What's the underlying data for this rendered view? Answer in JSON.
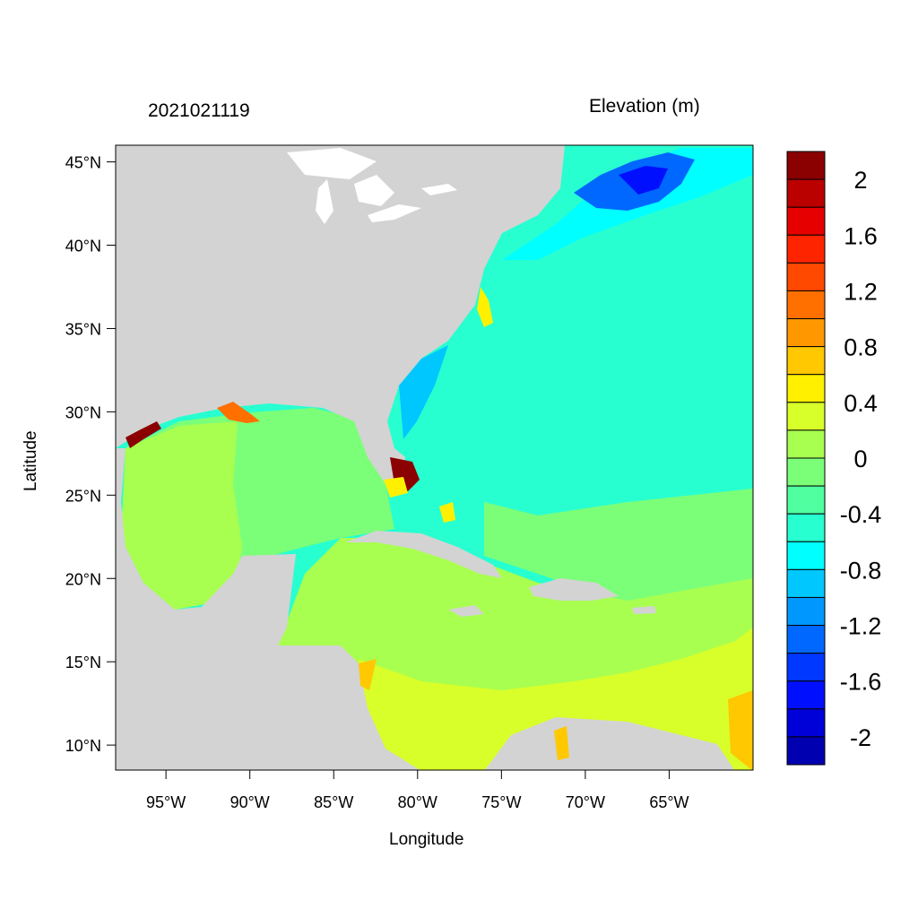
{
  "map": {
    "date_label": "2021021119",
    "units_label": "Elevation (m)",
    "xlabel": "Longitude",
    "ylabel": "Latitude",
    "lon_range": [
      -98,
      -60
    ],
    "lat_range": [
      8.5,
      46
    ],
    "lon_ticks": [
      "95°W",
      "90°W",
      "85°W",
      "80°W",
      "75°W",
      "70°W",
      "65°W"
    ],
    "lat_ticks": [
      "45°N",
      "40°N",
      "35°N",
      "30°N",
      "25°N",
      "20°N",
      "15°N",
      "10°N"
    ],
    "land_color": "#d3d3d3"
  },
  "colorbar": {
    "labels": [
      "2",
      "1.6",
      "1.2",
      "0.8",
      "0.4",
      "0",
      "-0.4",
      "-0.8",
      "-1.2",
      "-1.6",
      "-2"
    ],
    "colors": [
      "#8b0000",
      "#bb0000",
      "#e60000",
      "#ff2400",
      "#ff4800",
      "#ff7000",
      "#ff9800",
      "#ffc800",
      "#fff000",
      "#d8ff2a",
      "#a8ff50",
      "#7cff78",
      "#50ffa0",
      "#28ffd0",
      "#00ffff",
      "#00c8ff",
      "#0098ff",
      "#0068ff",
      "#0038ff",
      "#0010ff",
      "#0000d8",
      "#0000b0"
    ]
  }
}
